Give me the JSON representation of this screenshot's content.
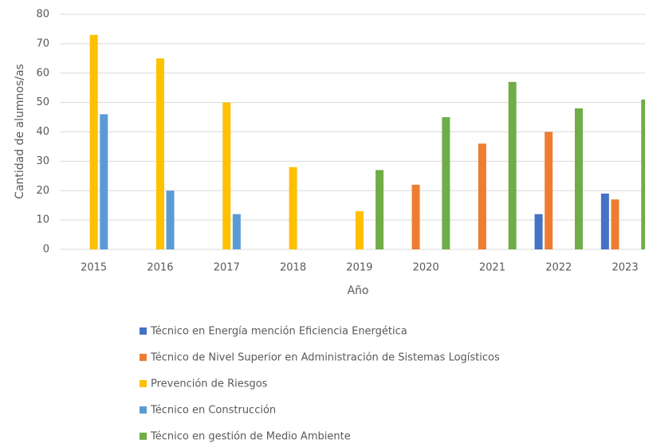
{
  "chart_data": {
    "type": "bar",
    "x_label": "Año",
    "y_label": "Cantidad de alumnos/as",
    "categories": [
      "2015",
      "2016",
      "2017",
      "2018",
      "2019",
      "2020",
      "2021",
      "2022",
      "2023"
    ],
    "series": [
      {
        "name": "Técnico en Energía mención Eficiencia Energética",
        "color": "#4472c4",
        "values": [
          null,
          null,
          null,
          null,
          null,
          null,
          null,
          12,
          19
        ]
      },
      {
        "name": "Técnico de Nivel Superior en Administración de Sistemas Logísticos",
        "color": "#ed7d31",
        "values": [
          null,
          null,
          null,
          null,
          null,
          22,
          36,
          40,
          17
        ]
      },
      {
        "name": "Prevención de Riesgos",
        "color": "#ffc000",
        "values": [
          73,
          65,
          50,
          28,
          13,
          null,
          null,
          null,
          null
        ]
      },
      {
        "name": "Técnico en Construcción",
        "color": "#5b9bd5",
        "values": [
          46,
          20,
          12,
          null,
          null,
          null,
          null,
          null,
          null
        ]
      },
      {
        "name": "Técnico en gestión de Medio Ambiente",
        "color": "#70ad47",
        "values": [
          null,
          null,
          null,
          null,
          27,
          45,
          57,
          48,
          51
        ]
      }
    ],
    "ylim": [
      0,
      80
    ],
    "yticks": [
      0,
      10,
      20,
      30,
      40,
      50,
      60,
      70,
      80
    ],
    "grid": true,
    "legend": "bottom"
  }
}
